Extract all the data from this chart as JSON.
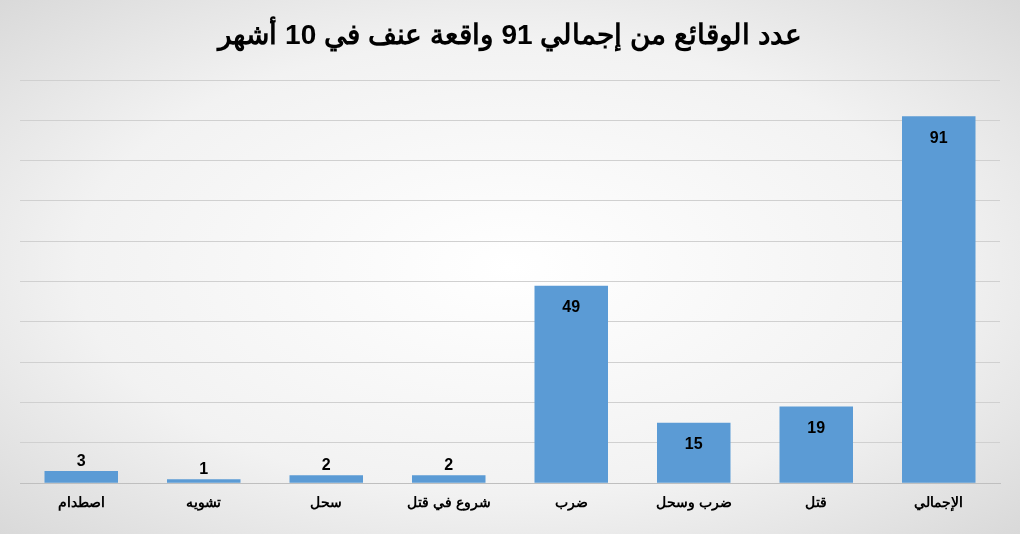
{
  "chart_data": {
    "type": "bar",
    "title": "عدد الوقائع من إجمالي 91 واقعة عنف في 10 أشهر",
    "categories": [
      "اصطدام",
      "تشويه",
      "سحل",
      "شروع في قتل",
      "ضرب",
      "ضرب وسحل",
      "قتل",
      "الإجمالي"
    ],
    "values": [
      3,
      1,
      2,
      2,
      49,
      15,
      19,
      91
    ],
    "color": "#5b9bd5",
    "grid": "y",
    "tick_labels": "x",
    "data_labels": true,
    "legend": false
  }
}
